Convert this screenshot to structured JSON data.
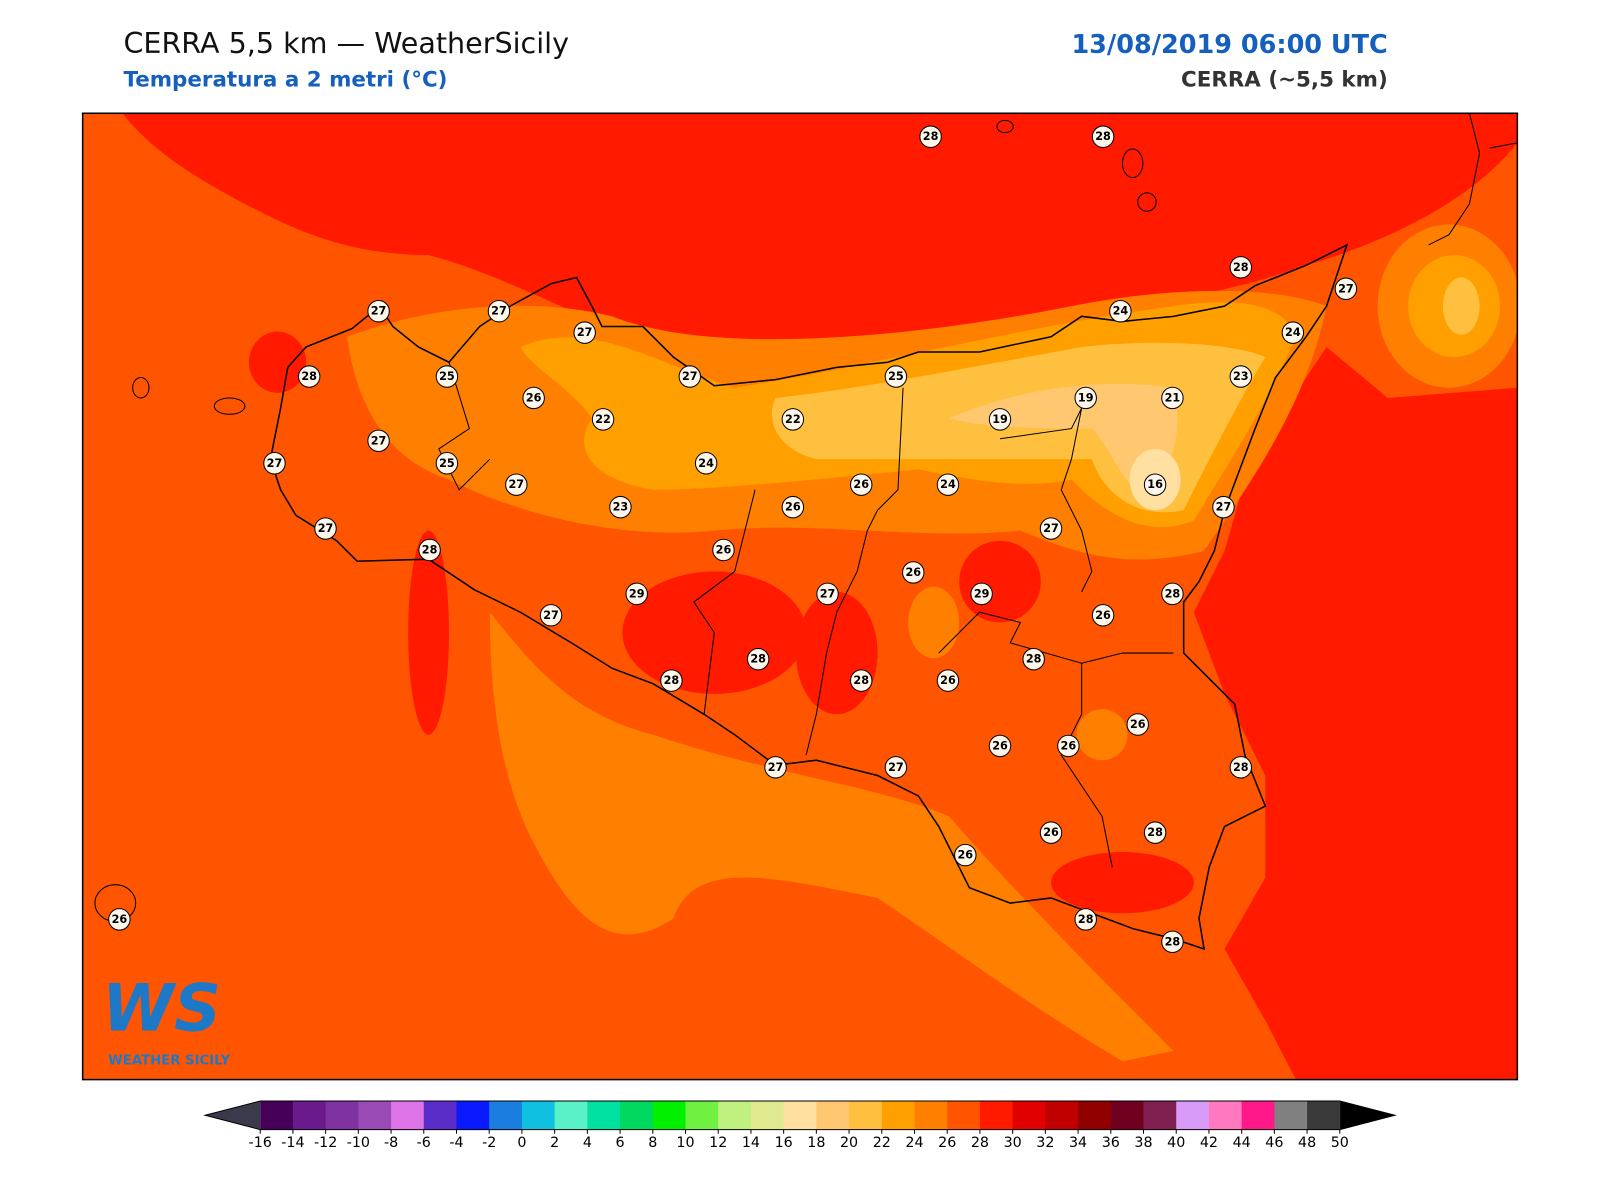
{
  "header": {
    "title": "CERRA 5,5 km — WeatherSicily",
    "subtitle": "Temperatura a 2 metri (°C)",
    "datetime": "13/08/2019 06:00 UTC",
    "model": "CERRA (~5,5 km)"
  },
  "logo": {
    "mark": "WS",
    "name": "WEATHER SICILY"
  },
  "stations": {
    "values": [
      28,
      28,
      28,
      27,
      24,
      24,
      27,
      27,
      27,
      28,
      25,
      27,
      25,
      23,
      26,
      19,
      21,
      22,
      22,
      19,
      27,
      27,
      25,
      24,
      27,
      26,
      24,
      16,
      23,
      26,
      27,
      27,
      27,
      28,
      26,
      26,
      29,
      27,
      29,
      28,
      27,
      26,
      28,
      28,
      28,
      28,
      26,
      26,
      26,
      26,
      28,
      27,
      27,
      26,
      28,
      26,
      26,
      28,
      28
    ]
  },
  "colorbar": {
    "ticks": [
      -16,
      -14,
      -12,
      -10,
      -8,
      -6,
      -4,
      -2,
      0,
      2,
      4,
      6,
      8,
      10,
      12,
      14,
      16,
      18,
      20,
      22,
      24,
      26,
      28,
      30,
      32,
      34,
      36,
      38,
      40,
      42,
      44,
      46,
      48,
      50
    ],
    "colors": [
      "#46005a",
      "#6a1a8a",
      "#7e33a0",
      "#9a4ab4",
      "#dc74e8",
      "#5a2cc8",
      "#0a1aff",
      "#1a7ee0",
      "#10c0e0",
      "#5af0c8",
      "#00e0a0",
      "#00d860",
      "#00f000",
      "#70f040",
      "#c0f080",
      "#e0e890",
      "#ffe0a0",
      "#ffc870",
      "#ffc040",
      "#ffa000",
      "#ff8000",
      "#ff5500",
      "#ff1a00",
      "#e00000",
      "#c00000",
      "#900000",
      "#700020",
      "#802050",
      "#d89cf8",
      "#ff78c0",
      "#ff1888",
      "#808080",
      "#3a3a3a"
    ],
    "under_color": "#3a3a4a",
    "over_color": "#000000"
  }
}
